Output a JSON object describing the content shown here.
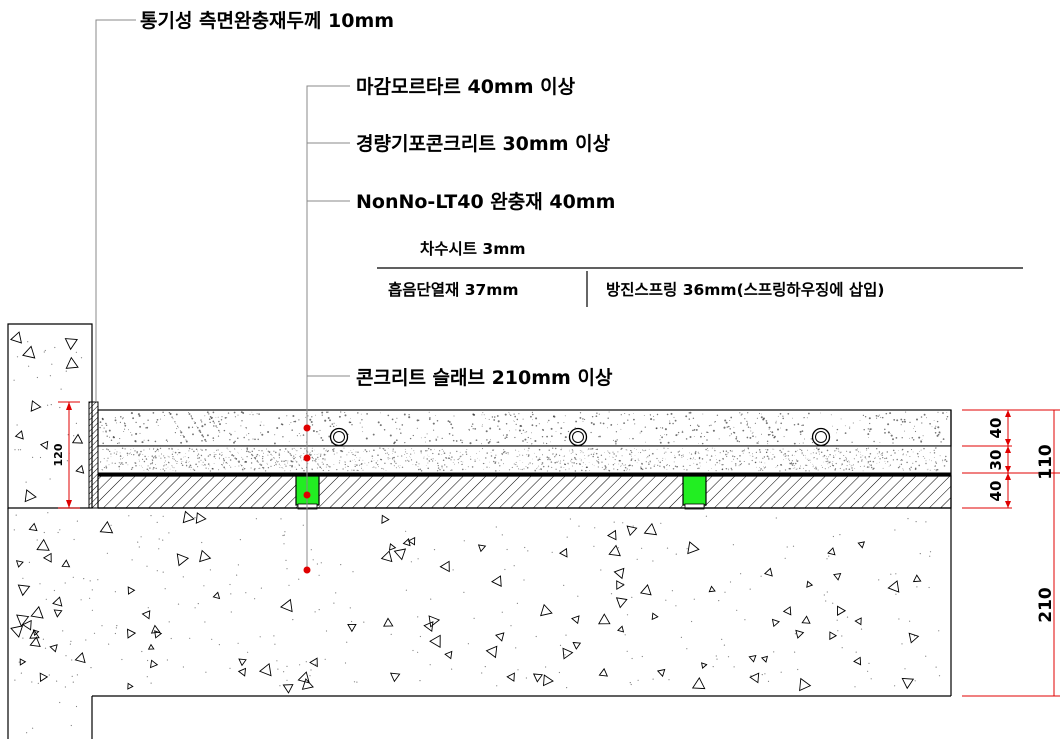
{
  "labels": {
    "side_insulation": "통기성 측면완충재두께 10mm",
    "finish_mortar": "마감모르타르 40mm 이상",
    "foam_concrete": "경량기포콘크리트 30mm 이상",
    "cushion": "NonNo-LT40 완충재 40mm",
    "waterproof_sheet": "차수시트 3mm",
    "sound_insulation": "흡음단열재 37mm",
    "spring": "방진스프링 36mm(스프링하우징에 삽입)",
    "slab": "콘크리트 슬래브 210mm 이상"
  },
  "dimensions": {
    "wall_height": "120",
    "layer_mortar": "40",
    "layer_foam": "30",
    "layer_cushion": "40",
    "total_floor": "110",
    "slab": "210"
  },
  "colors": {
    "marker": "#e00000",
    "spring": "#22ee22",
    "dimension_line": "#e00000",
    "outline": "#000000"
  }
}
